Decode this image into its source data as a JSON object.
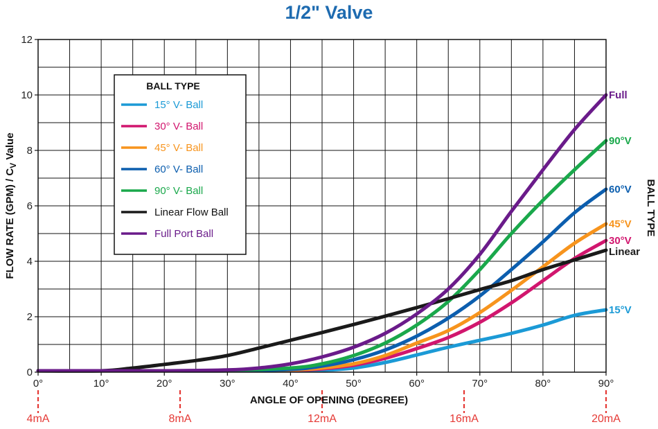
{
  "chart_data": {
    "type": "line",
    "title": "1/2\" Valve",
    "xlabel": "ANGLE OF OPENING (DEGREE)",
    "ylabel": "FLOW RATE (GPM) / C",
    "ylabel_sub": "V",
    "ylabel_tail": " Value",
    "right_label": "BALL TYPE",
    "xlim": [
      0,
      90
    ],
    "ylim": [
      0,
      12
    ],
    "x_ticks": [
      0,
      10,
      20,
      30,
      40,
      50,
      60,
      70,
      80,
      90
    ],
    "x_tick_labels": [
      "0°",
      "10°",
      "20°",
      "30°",
      "40°",
      "50°",
      "60°",
      "70°",
      "80°",
      "90°"
    ],
    "y_ticks": [
      0,
      2,
      4,
      6,
      8,
      10,
      12
    ],
    "y_tick_labels": [
      "0",
      "2",
      "4",
      "6",
      "8",
      "10",
      "12"
    ],
    "grid": true,
    "signal_markers": [
      {
        "label": "4mA",
        "x": 0
      },
      {
        "label": "8mA",
        "x": 22.5
      },
      {
        "label": "12mA",
        "x": 45
      },
      {
        "label": "16mA",
        "x": 67.5
      },
      {
        "label": "20mA",
        "x": 90
      }
    ],
    "legend": {
      "title": "BALL TYPE",
      "placement": "top-left"
    },
    "series": [
      {
        "name": "15° V- Ball",
        "end_label": "15°V",
        "color": "#1b9ad6",
        "x": [
          0,
          10,
          20,
          30,
          40,
          45,
          50,
          55,
          60,
          65,
          70,
          75,
          80,
          85,
          90
        ],
        "y": [
          0.05,
          0.05,
          0.05,
          0.05,
          0.05,
          0.07,
          0.15,
          0.35,
          0.62,
          0.9,
          1.15,
          1.4,
          1.7,
          2.05,
          2.25
        ]
      },
      {
        "name": "30° V- Ball",
        "end_label": "30°V",
        "color": "#d1166e",
        "x": [
          0,
          10,
          20,
          30,
          40,
          45,
          50,
          55,
          60,
          65,
          70,
          75,
          80,
          85,
          90
        ],
        "y": [
          0.05,
          0.05,
          0.05,
          0.05,
          0.07,
          0.12,
          0.25,
          0.5,
          0.85,
          1.25,
          1.8,
          2.5,
          3.3,
          4.1,
          4.75
        ]
      },
      {
        "name": "45° V- Ball",
        "end_label": "45°V",
        "color": "#f7941d",
        "x": [
          0,
          10,
          20,
          30,
          40,
          45,
          50,
          55,
          60,
          65,
          70,
          75,
          80,
          85,
          90
        ],
        "y": [
          0.05,
          0.05,
          0.05,
          0.05,
          0.08,
          0.15,
          0.3,
          0.6,
          1.05,
          1.5,
          2.15,
          2.95,
          3.8,
          4.65,
          5.35
        ]
      },
      {
        "name": "60° V- Ball",
        "end_label": "60°V",
        "color": "#0c5eae",
        "x": [
          0,
          10,
          20,
          30,
          40,
          45,
          50,
          55,
          60,
          65,
          70,
          75,
          80,
          85,
          90
        ],
        "y": [
          0.05,
          0.05,
          0.05,
          0.05,
          0.1,
          0.22,
          0.45,
          0.8,
          1.3,
          1.95,
          2.75,
          3.7,
          4.7,
          5.75,
          6.6
        ]
      },
      {
        "name": "90° V- Ball",
        "end_label": "90°V",
        "color": "#1aa84b",
        "x": [
          0,
          10,
          20,
          30,
          40,
          45,
          50,
          55,
          60,
          65,
          70,
          75,
          80,
          85,
          90
        ],
        "y": [
          0.05,
          0.05,
          0.05,
          0.07,
          0.15,
          0.3,
          0.6,
          1.05,
          1.7,
          2.55,
          3.7,
          5.0,
          6.2,
          7.3,
          8.35
        ]
      },
      {
        "name": "Linear Flow Ball",
        "end_label": "Linear",
        "color": "#1a1a1a",
        "x": [
          0,
          10,
          15,
          20,
          25,
          30,
          35,
          40,
          45,
          50,
          55,
          60,
          65,
          70,
          75,
          80,
          85,
          90
        ],
        "y": [
          0.05,
          0.05,
          0.15,
          0.28,
          0.42,
          0.6,
          0.87,
          1.15,
          1.43,
          1.72,
          2.02,
          2.33,
          2.65,
          2.98,
          3.3,
          3.7,
          4.05,
          4.4
        ]
      },
      {
        "name": "Full Port Ball",
        "end_label": "Full",
        "color": "#6a1b8a",
        "x": [
          0,
          10,
          20,
          30,
          35,
          40,
          45,
          50,
          55,
          60,
          65,
          70,
          75,
          80,
          85,
          90
        ],
        "y": [
          0.05,
          0.05,
          0.05,
          0.08,
          0.15,
          0.3,
          0.55,
          0.9,
          1.4,
          2.1,
          3.0,
          4.25,
          5.8,
          7.3,
          8.75,
          10.0
        ]
      }
    ]
  }
}
